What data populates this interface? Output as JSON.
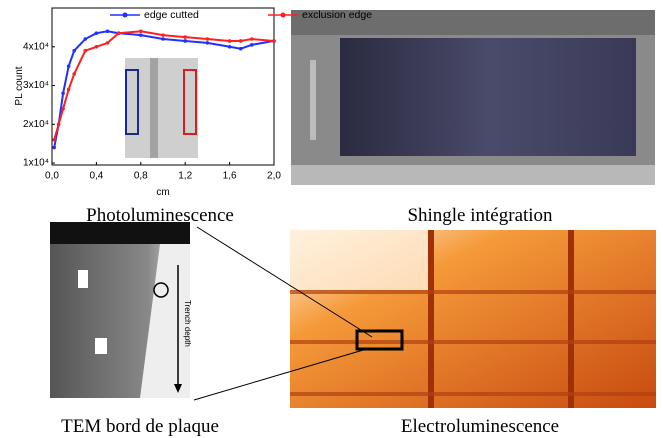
{
  "chart_data": {
    "type": "line",
    "y_label": "PL count",
    "x_label": "cm",
    "x": [
      0.02,
      0.06,
      0.1,
      0.15,
      0.2,
      0.3,
      0.4,
      0.5,
      0.6,
      0.8,
      1.0,
      1.2,
      1.4,
      1.6,
      1.7,
      1.8,
      2.0
    ],
    "series": [
      {
        "name": "edge cutted",
        "color": "#2030ff",
        "values": [
          14000,
          20000,
          28000,
          35000,
          39000,
          42000,
          43500,
          44000,
          43500,
          43000,
          42000,
          41500,
          41000,
          40000,
          39500,
          40500,
          41500
        ]
      },
      {
        "name": "exclusion edge",
        "color": "#ff2020",
        "values": [
          16000,
          20000,
          24000,
          29000,
          33000,
          39000,
          40000,
          41000,
          43500,
          44000,
          43000,
          42500,
          42000,
          41500,
          41500,
          42000,
          41500
        ]
      }
    ],
    "xlim": [
      0,
      2.0
    ],
    "xticks": [
      {
        "value": 0,
        "label": "0,0"
      },
      {
        "value": 0.4,
        "label": "0,4"
      },
      {
        "value": 0.8,
        "label": "0,8"
      },
      {
        "value": 1.2,
        "label": "1,2"
      },
      {
        "value": 1.6,
        "label": "1,6"
      },
      {
        "value": 2.0,
        "label": "2,0"
      }
    ],
    "ylim": [
      9500,
      50000
    ],
    "yticks": [
      {
        "value": 10000,
        "label": "1x10⁴"
      },
      {
        "value": 20000,
        "label": "2x10⁴"
      },
      {
        "value": 30000,
        "label": "3x10⁴"
      },
      {
        "value": 40000,
        "label": "4x10⁴"
      }
    ]
  },
  "captions": [
    "Photoluminescence",
    "Shingle intégration",
    "TEM bord de plaque",
    "Electroluminescence"
  ],
  "tem_annotation": "Trench depth"
}
